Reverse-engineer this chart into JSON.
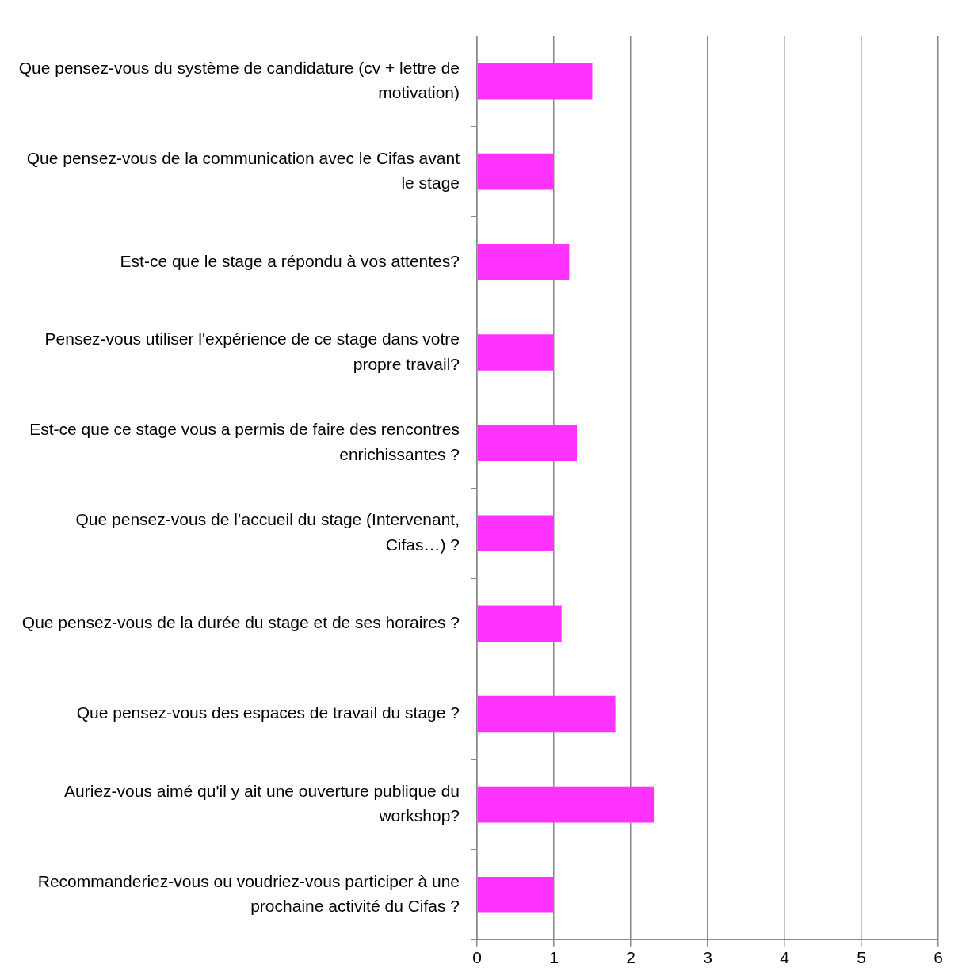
{
  "chart_data": {
    "type": "bar",
    "orientation": "horizontal",
    "categories": [
      "Que pensez-vous du système de candidature (cv + lettre de motivation)",
      "Que pensez-vous de la communication avec le Cifas avant le stage",
      "Est-ce que le stage a répondu à vos attentes?",
      "Pensez-vous utiliser l'expérience de ce stage dans votre propre travail?",
      "Est-ce que ce stage vous a permis de faire des rencontres enrichissantes ?",
      "Que pensez-vous de l’accueil du stage (Intervenant, Cifas…) ?",
      "Que pensez-vous de la durée du stage et de ses horaires ?",
      "Que pensez-vous des espaces de travail du stage ?",
      "Auriez-vous aimé qu'il y ait une ouverture publique du workshop?",
      "Recommanderiez-vous ou voudriez-vous participer à une prochaine activité du Cifas ?"
    ],
    "values": [
      1.5,
      1,
      1.2,
      1,
      1.3,
      1,
      1.1,
      1.8,
      2.3,
      1
    ],
    "color": "#ff33ff",
    "xlim": [
      0,
      6
    ],
    "xticks": [
      0,
      1,
      2,
      3,
      4,
      5,
      6
    ],
    "grid": "x",
    "legend": false
  }
}
